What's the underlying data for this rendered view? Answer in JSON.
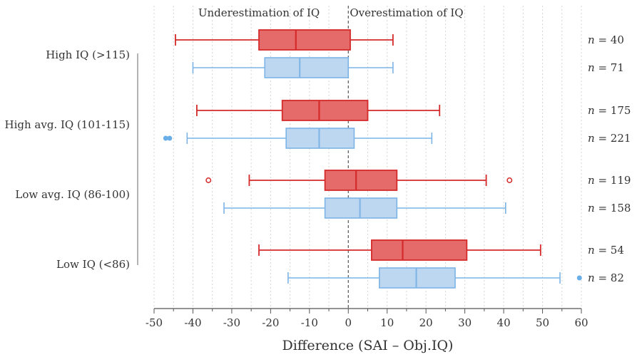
{
  "chart_data": {
    "type": "boxplot",
    "orientation": "horizontal",
    "xlabel": "Difference (SAI – Obj.IQ)",
    "xlim": [
      -50,
      60
    ],
    "xticks": [
      -50,
      -40,
      -30,
      -20,
      -10,
      0,
      10,
      20,
      30,
      40,
      50,
      60
    ],
    "grid": true,
    "zero_line": "dashed",
    "region_labels": {
      "left": "Underestimation of IQ",
      "right": "Overestimation of IQ"
    },
    "series": [
      {
        "name": "red",
        "color": "#e56b6b",
        "stroke": "#d42a2a"
      },
      {
        "name": "blue",
        "color": "#bdd7f1",
        "stroke": "#7db4e6"
      }
    ],
    "groups": [
      {
        "label": "High IQ (>115)",
        "boxes": [
          {
            "series": "red",
            "n_label": "n = 40",
            "whisker_low": -44.5,
            "q1": -23,
            "median": -13.5,
            "q3": 0.5,
            "whisker_high": 11.5,
            "outliers": []
          },
          {
            "series": "blue",
            "n_label": "n = 71",
            "whisker_low": -40,
            "q1": -21.5,
            "median": -12.5,
            "q3": 0,
            "whisker_high": 11.5,
            "outliers": []
          }
        ]
      },
      {
        "label": "High avg. IQ (101-115)",
        "boxes": [
          {
            "series": "red",
            "n_label": "n = 175",
            "whisker_low": -39,
            "q1": -17,
            "median": -7.5,
            "q3": 5,
            "whisker_high": 23.5,
            "outliers": []
          },
          {
            "series": "blue",
            "n_label": "n = 221",
            "whisker_low": -41.5,
            "q1": -16,
            "median": -7.5,
            "q3": 1.5,
            "whisker_high": 21.5,
            "outliers": [
              -47,
              -46
            ]
          }
        ]
      },
      {
        "label": "Low avg. IQ (86-100)",
        "boxes": [
          {
            "series": "red",
            "n_label": "n = 119",
            "whisker_low": -25.5,
            "q1": -6,
            "median": 2,
            "q3": 12.5,
            "whisker_high": 35.5,
            "outliers": [
              -36,
              41.5
            ]
          },
          {
            "series": "blue",
            "n_label": "n = 158",
            "whisker_low": -32,
            "q1": -6,
            "median": 3,
            "q3": 12.5,
            "whisker_high": 40.5,
            "outliers": []
          }
        ]
      },
      {
        "label": "Low IQ (<86)",
        "boxes": [
          {
            "series": "red",
            "n_label": "n = 54",
            "whisker_low": -23,
            "q1": 6,
            "median": 14,
            "q3": 30.5,
            "whisker_high": 49.5,
            "outliers": []
          },
          {
            "series": "blue",
            "n_label": "n = 82",
            "whisker_low": -15.5,
            "q1": 8,
            "median": 17.5,
            "q3": 27.5,
            "whisker_high": 54.5,
            "outliers": [
              59.5
            ]
          }
        ]
      }
    ]
  }
}
